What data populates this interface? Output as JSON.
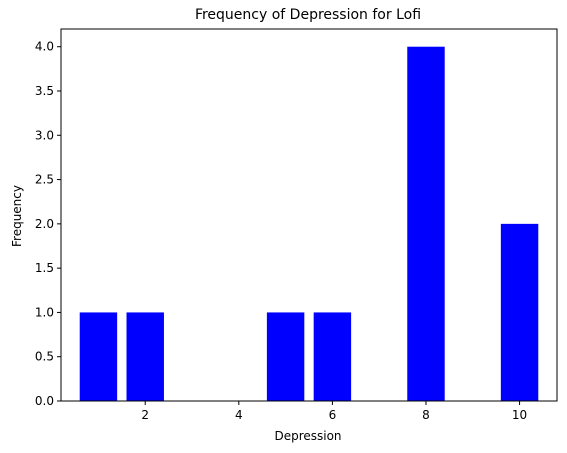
{
  "chart_data": {
    "type": "bar",
    "title": "Frequency of Depression for Lofi",
    "xlabel": "Depression",
    "ylabel": "Frequency",
    "x": [
      1,
      2,
      5,
      6,
      8,
      10
    ],
    "values": [
      1,
      1,
      1,
      1,
      4,
      2
    ],
    "bar_width": 0.8,
    "color": "#0000ff",
    "xlim": [
      0.2,
      10.8
    ],
    "ylim": [
      0,
      4.2
    ],
    "xticks": [
      2,
      4,
      6,
      8,
      10
    ],
    "xtick_labels": [
      "2",
      "4",
      "6",
      "8",
      "10"
    ],
    "yticks": [
      0,
      0.5,
      1,
      1.5,
      2,
      2.5,
      3,
      3.5,
      4
    ],
    "ytick_labels": [
      "0.0",
      "0.5",
      "1.0",
      "1.5",
      "2.0",
      "2.5",
      "3.0",
      "3.5",
      "4.0"
    ],
    "grid": false,
    "legend": "none"
  }
}
